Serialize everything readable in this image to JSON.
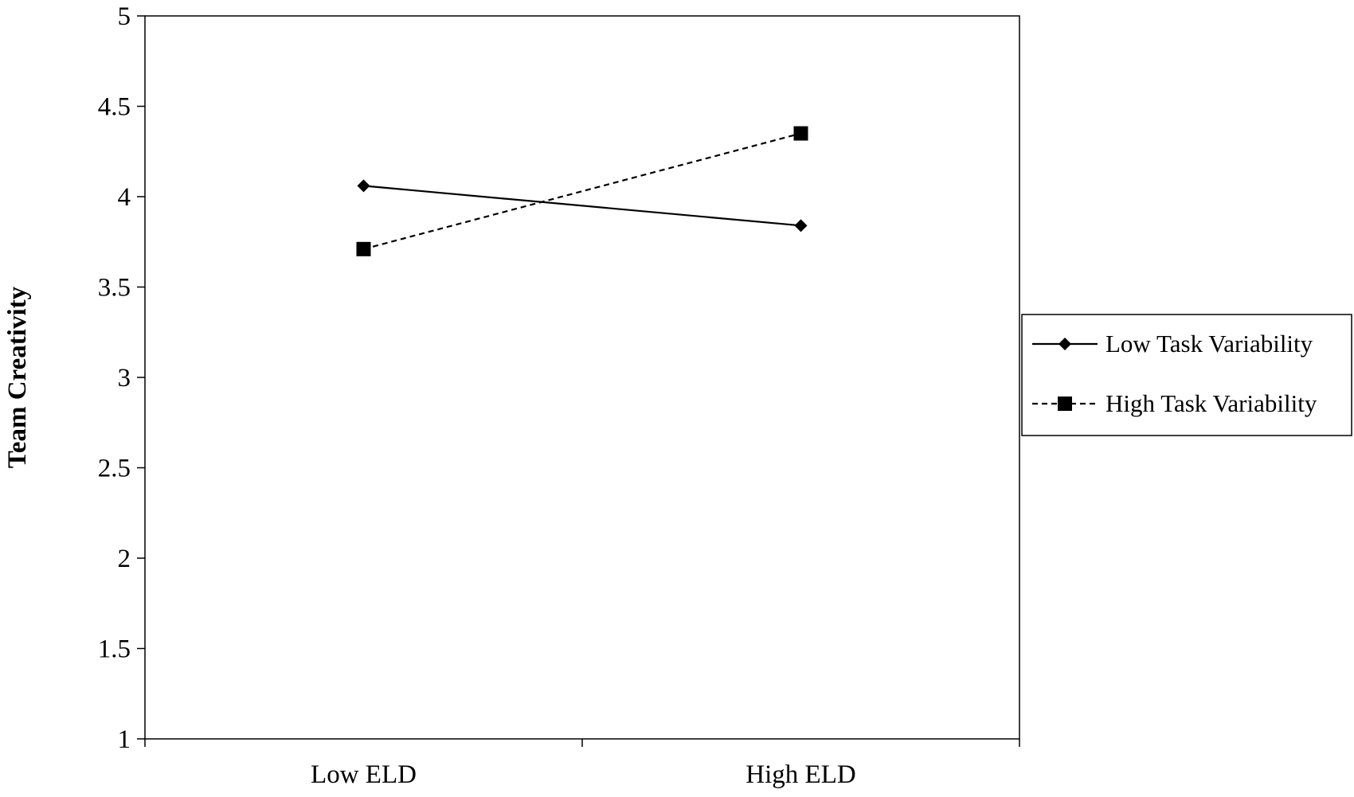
{
  "chart_data": {
    "type": "line",
    "title": "",
    "xlabel": "",
    "ylabel": "Team Creativity",
    "categories": [
      "Low ELD",
      "High ELD"
    ],
    "ylim": [
      1,
      5
    ],
    "yticks": [
      1,
      1.5,
      2,
      2.5,
      3,
      3.5,
      4,
      4.5,
      5
    ],
    "ytick_labels": [
      "1",
      "1.5",
      "2",
      "2.5",
      "3",
      "3.5",
      "4",
      "4.5",
      "5"
    ],
    "grid": false,
    "legend_position": "right",
    "series": [
      {
        "name": "Low Task Variability",
        "values": [
          4.06,
          3.84
        ],
        "marker": "diamond",
        "line_style": "solid",
        "color": "#000000"
      },
      {
        "name": "High Task Variability",
        "values": [
          3.71,
          4.35
        ],
        "marker": "square",
        "line_style": "dashed",
        "color": "#000000"
      }
    ]
  }
}
